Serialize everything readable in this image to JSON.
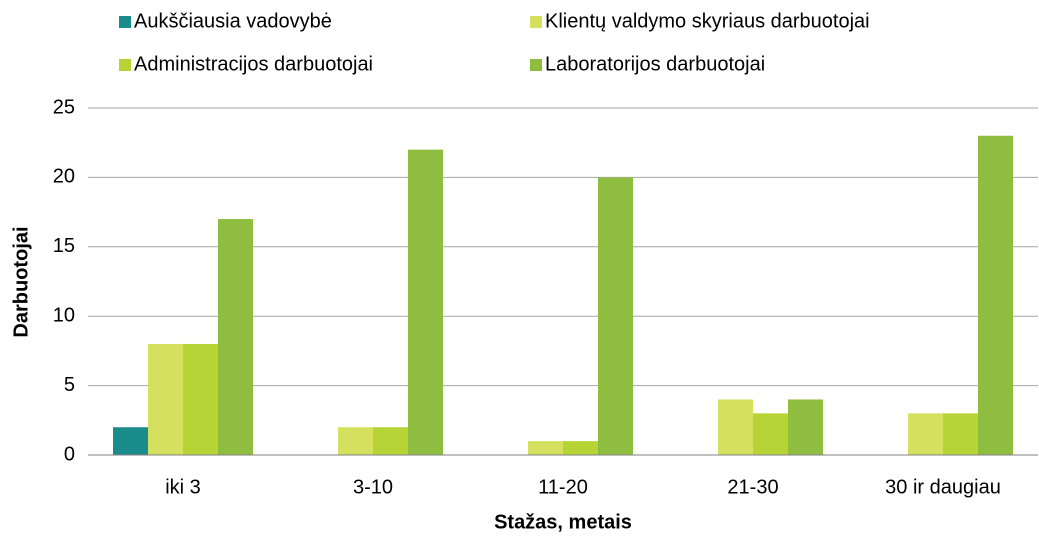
{
  "chart_data": {
    "type": "bar",
    "xlabel": "Stažas, metais",
    "ylabel": "Darbuotojai",
    "categories": [
      "iki 3",
      "3-10",
      "11-20",
      "21-30",
      "30 ir daugiau"
    ],
    "series": [
      {
        "name": "Aukščiausia vadovybė",
        "color": "#1b8c8c",
        "values": [
          2,
          0,
          0,
          0,
          0
        ]
      },
      {
        "name": "Klientų valdymo skyriaus darbuotojai",
        "color": "#d5e05f",
        "values": [
          8,
          2,
          1,
          4,
          3
        ]
      },
      {
        "name": "Administracijos darbuotojai",
        "color": "#b6d436",
        "values": [
          8,
          2,
          1,
          3,
          3
        ]
      },
      {
        "name": "Laboratorijos darbuotojai",
        "color": "#8fbd40",
        "values": [
          17,
          22,
          20,
          4,
          23
        ]
      }
    ],
    "ylim": [
      0,
      25
    ],
    "yticks": [
      0,
      5,
      10,
      15,
      20,
      25
    ],
    "grid": true,
    "legend": "top"
  }
}
